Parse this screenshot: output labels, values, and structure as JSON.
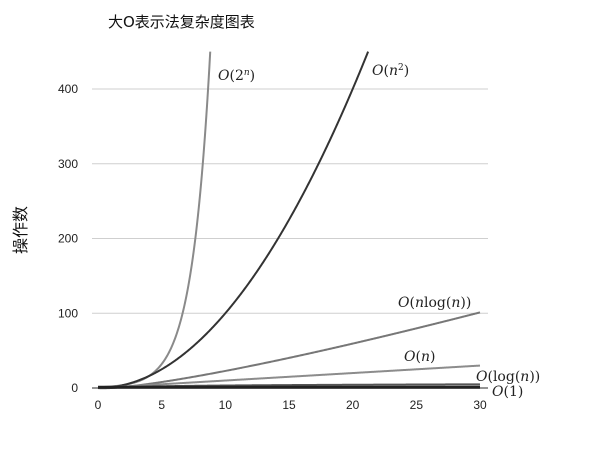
{
  "chart_data": {
    "type": "line",
    "title": "大O表示法复杂度图表",
    "ylabel": "操作数",
    "xlabel": "",
    "xlim": [
      0,
      30
    ],
    "ylim": [
      0,
      450
    ],
    "xticks": [
      0,
      5,
      10,
      15,
      20,
      25,
      30
    ],
    "yticks": [
      0,
      100,
      200,
      300,
      400
    ],
    "grid": true,
    "legend": "none",
    "series": [
      {
        "name": "O(2^n)",
        "func": "exp2",
        "color": "#8a8a8a"
      },
      {
        "name": "O(n^2)",
        "func": "square",
        "color": "#333333"
      },
      {
        "name": "O(nlog(n))",
        "func": "nlogn",
        "color": "#777777"
      },
      {
        "name": "O(n)",
        "func": "linear",
        "color": "#8c8c8c"
      },
      {
        "name": "O(log(n))",
        "func": "log",
        "color": "#555555"
      },
      {
        "name": "O(1)",
        "func": "const",
        "color": "#222222"
      }
    ]
  }
}
